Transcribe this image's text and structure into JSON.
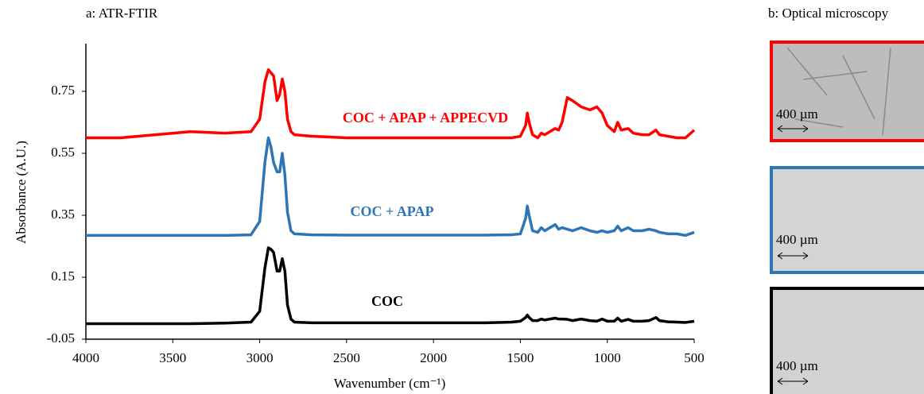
{
  "chart_data": {
    "type": "line",
    "title": "a: ATR-FTIR",
    "x_label": "Wavenumber (cm⁻¹)",
    "y_label": "Absorbance (A.U.)",
    "xlim": [
      4000,
      500
    ],
    "xticks": [
      4000,
      3500,
      3000,
      2500,
      2000,
      1500,
      1000,
      500
    ],
    "ylim": [
      -0.05,
      0.9
    ],
    "yticks": [
      -0.05,
      0.15,
      0.35,
      0.55,
      0.75
    ],
    "x": [
      4000,
      3800,
      3600,
      3400,
      3200,
      3050,
      3000,
      2970,
      2950,
      2935,
      2920,
      2900,
      2885,
      2870,
      2855,
      2840,
      2820,
      2800,
      2700,
      2500,
      2300,
      2100,
      1900,
      1700,
      1550,
      1500,
      1470,
      1460,
      1450,
      1430,
      1400,
      1380,
      1360,
      1300,
      1280,
      1260,
      1230,
      1200,
      1150,
      1100,
      1060,
      1030,
      1000,
      960,
      940,
      920,
      880,
      850,
      800,
      760,
      720,
      700,
      650,
      600,
      550,
      500
    ],
    "series": [
      {
        "name": "COC + APAP + APPECVD",
        "color": "#ff0000",
        "values": [
          0.6,
          0.6,
          0.61,
          0.62,
          0.615,
          0.62,
          0.66,
          0.78,
          0.82,
          0.81,
          0.8,
          0.72,
          0.74,
          0.79,
          0.75,
          0.66,
          0.62,
          0.61,
          0.605,
          0.6,
          0.6,
          0.6,
          0.6,
          0.6,
          0.6,
          0.605,
          0.64,
          0.68,
          0.65,
          0.61,
          0.6,
          0.615,
          0.61,
          0.63,
          0.625,
          0.65,
          0.73,
          0.72,
          0.7,
          0.69,
          0.7,
          0.68,
          0.64,
          0.62,
          0.65,
          0.625,
          0.63,
          0.615,
          0.61,
          0.61,
          0.625,
          0.61,
          0.605,
          0.6,
          0.6,
          0.625
        ]
      },
      {
        "name": "COC + APAP",
        "color": "#2e75b6",
        "values": [
          0.285,
          0.285,
          0.285,
          0.285,
          0.285,
          0.287,
          0.33,
          0.52,
          0.6,
          0.57,
          0.52,
          0.49,
          0.49,
          0.55,
          0.48,
          0.36,
          0.3,
          0.29,
          0.287,
          0.286,
          0.286,
          0.286,
          0.286,
          0.286,
          0.287,
          0.29,
          0.34,
          0.38,
          0.35,
          0.3,
          0.295,
          0.31,
          0.3,
          0.32,
          0.305,
          0.31,
          0.305,
          0.3,
          0.31,
          0.3,
          0.295,
          0.3,
          0.295,
          0.3,
          0.315,
          0.3,
          0.31,
          0.3,
          0.3,
          0.305,
          0.3,
          0.295,
          0.29,
          0.29,
          0.285,
          0.295
        ]
      },
      {
        "name": "COC",
        "color": "#000000",
        "values": [
          0.0,
          0.0,
          0.0,
          0.0,
          0.002,
          0.005,
          0.04,
          0.18,
          0.245,
          0.24,
          0.23,
          0.17,
          0.17,
          0.21,
          0.17,
          0.06,
          0.015,
          0.005,
          0.003,
          0.003,
          0.003,
          0.003,
          0.003,
          0.003,
          0.005,
          0.008,
          0.02,
          0.028,
          0.02,
          0.01,
          0.01,
          0.015,
          0.012,
          0.018,
          0.015,
          0.015,
          0.014,
          0.01,
          0.015,
          0.01,
          0.008,
          0.015,
          0.008,
          0.008,
          0.018,
          0.008,
          0.014,
          0.008,
          0.008,
          0.01,
          0.02,
          0.01,
          0.006,
          0.005,
          0.004,
          0.008
        ]
      }
    ]
  },
  "microscopy": {
    "title": "b: Optical microscopy",
    "panels": [
      {
        "scale_label": "400 µm"
      },
      {
        "scale_label": "400 µm"
      },
      {
        "scale_label": "400 µm"
      }
    ]
  }
}
